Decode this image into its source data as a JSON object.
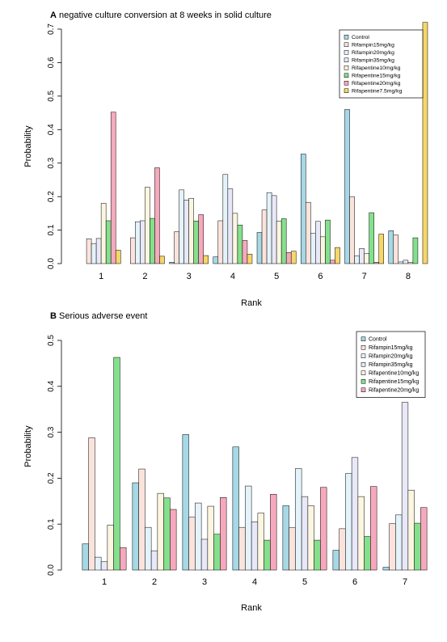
{
  "chart_data": [
    {
      "panel": "A",
      "type": "bar",
      "title": "negative culture conversion at 8 weeks in solid culture",
      "xlabel": "Rank",
      "ylabel": "Probability",
      "ylim": [
        0,
        0.72
      ],
      "yticks": [
        "0.0",
        "0.1",
        "0.2",
        "0.3",
        "0.4",
        "0.5",
        "0.6",
        "0.7"
      ],
      "categories": [
        "1",
        "2",
        "3",
        "4",
        "5",
        "6",
        "7",
        "8"
      ],
      "legend_position": "top-right",
      "series": [
        {
          "name": "Control",
          "color": "#a6d8e6",
          "values": [
            0.0,
            0.0,
            0.004,
            0.02,
            0.093,
            0.327,
            0.46,
            0.098
          ]
        },
        {
          "name": "Rifampin15mg/kg",
          "color": "#fbe3dc",
          "values": [
            0.074,
            0.077,
            0.095,
            0.128,
            0.16,
            0.183,
            0.2,
            0.085
          ]
        },
        {
          "name": "Rifampin20mg/kg",
          "color": "#e4f3fa",
          "values": [
            0.06,
            0.125,
            0.22,
            0.266,
            0.212,
            0.09,
            0.023,
            0.005
          ]
        },
        {
          "name": "Rifampin35mg/kg",
          "color": "#e8e8f8",
          "values": [
            0.075,
            0.128,
            0.19,
            0.223,
            0.203,
            0.126,
            0.045,
            0.01
          ]
        },
        {
          "name": "Rifapentine10mg/kg",
          "color": "#fcf6e0",
          "values": [
            0.18,
            0.228,
            0.195,
            0.15,
            0.127,
            0.08,
            0.03,
            0.004
          ]
        },
        {
          "name": "Rifapentine15mg/kg",
          "color": "#84e08c",
          "values": [
            0.128,
            0.135,
            0.127,
            0.115,
            0.134,
            0.13,
            0.152,
            0.077
          ]
        },
        {
          "name": "Rifapentine20mg/kg",
          "color": "#f6a9bd",
          "values": [
            0.452,
            0.286,
            0.146,
            0.069,
            0.033,
            0.01,
            0.004,
            0.0
          ]
        },
        {
          "name": "Rifapentine7.5mg/kg",
          "color": "#f5d66a",
          "values": [
            0.04,
            0.022,
            0.024,
            0.028,
            0.037,
            0.048,
            0.088,
            0.72
          ]
        }
      ]
    },
    {
      "panel": "B",
      "type": "bar",
      "title": "Serious adverse event",
      "xlabel": "Rank",
      "ylabel": "Probability",
      "ylim": [
        0,
        0.5
      ],
      "yticks": [
        "0.0",
        "0.1",
        "0.2",
        "0.3",
        "0.4",
        "0.5"
      ],
      "categories": [
        "1",
        "2",
        "3",
        "4",
        "5",
        "6",
        "7"
      ],
      "legend_position": "top-right",
      "series": [
        {
          "name": "Control",
          "color": "#a6d8e6",
          "values": [
            0.057,
            0.19,
            0.295,
            0.268,
            0.14,
            0.043,
            0.006
          ]
        },
        {
          "name": "Rifampin15mg/kg",
          "color": "#fbe3dc",
          "values": [
            0.288,
            0.22,
            0.115,
            0.093,
            0.092,
            0.09,
            0.101
          ]
        },
        {
          "name": "Rifampin20mg/kg",
          "color": "#e4f3fa",
          "values": [
            0.028,
            0.093,
            0.146,
            0.183,
            0.221,
            0.21,
            0.12
          ]
        },
        {
          "name": "Rifampin35mg/kg",
          "color": "#e8e8f8",
          "values": [
            0.018,
            0.042,
            0.067,
            0.105,
            0.16,
            0.245,
            0.365
          ]
        },
        {
          "name": "Rifapentine10mg/kg",
          "color": "#fcf6e0",
          "values": [
            0.098,
            0.167,
            0.139,
            0.124,
            0.14,
            0.16,
            0.174
          ]
        },
        {
          "name": "Rifapentine15mg/kg",
          "color": "#84e08c",
          "values": [
            0.463,
            0.157,
            0.078,
            0.065,
            0.065,
            0.073,
            0.102
          ]
        },
        {
          "name": "Rifapentine20mg/kg",
          "color": "#f6a9bd",
          "values": [
            0.049,
            0.132,
            0.158,
            0.165,
            0.18,
            0.182,
            0.136
          ]
        }
      ]
    }
  ]
}
